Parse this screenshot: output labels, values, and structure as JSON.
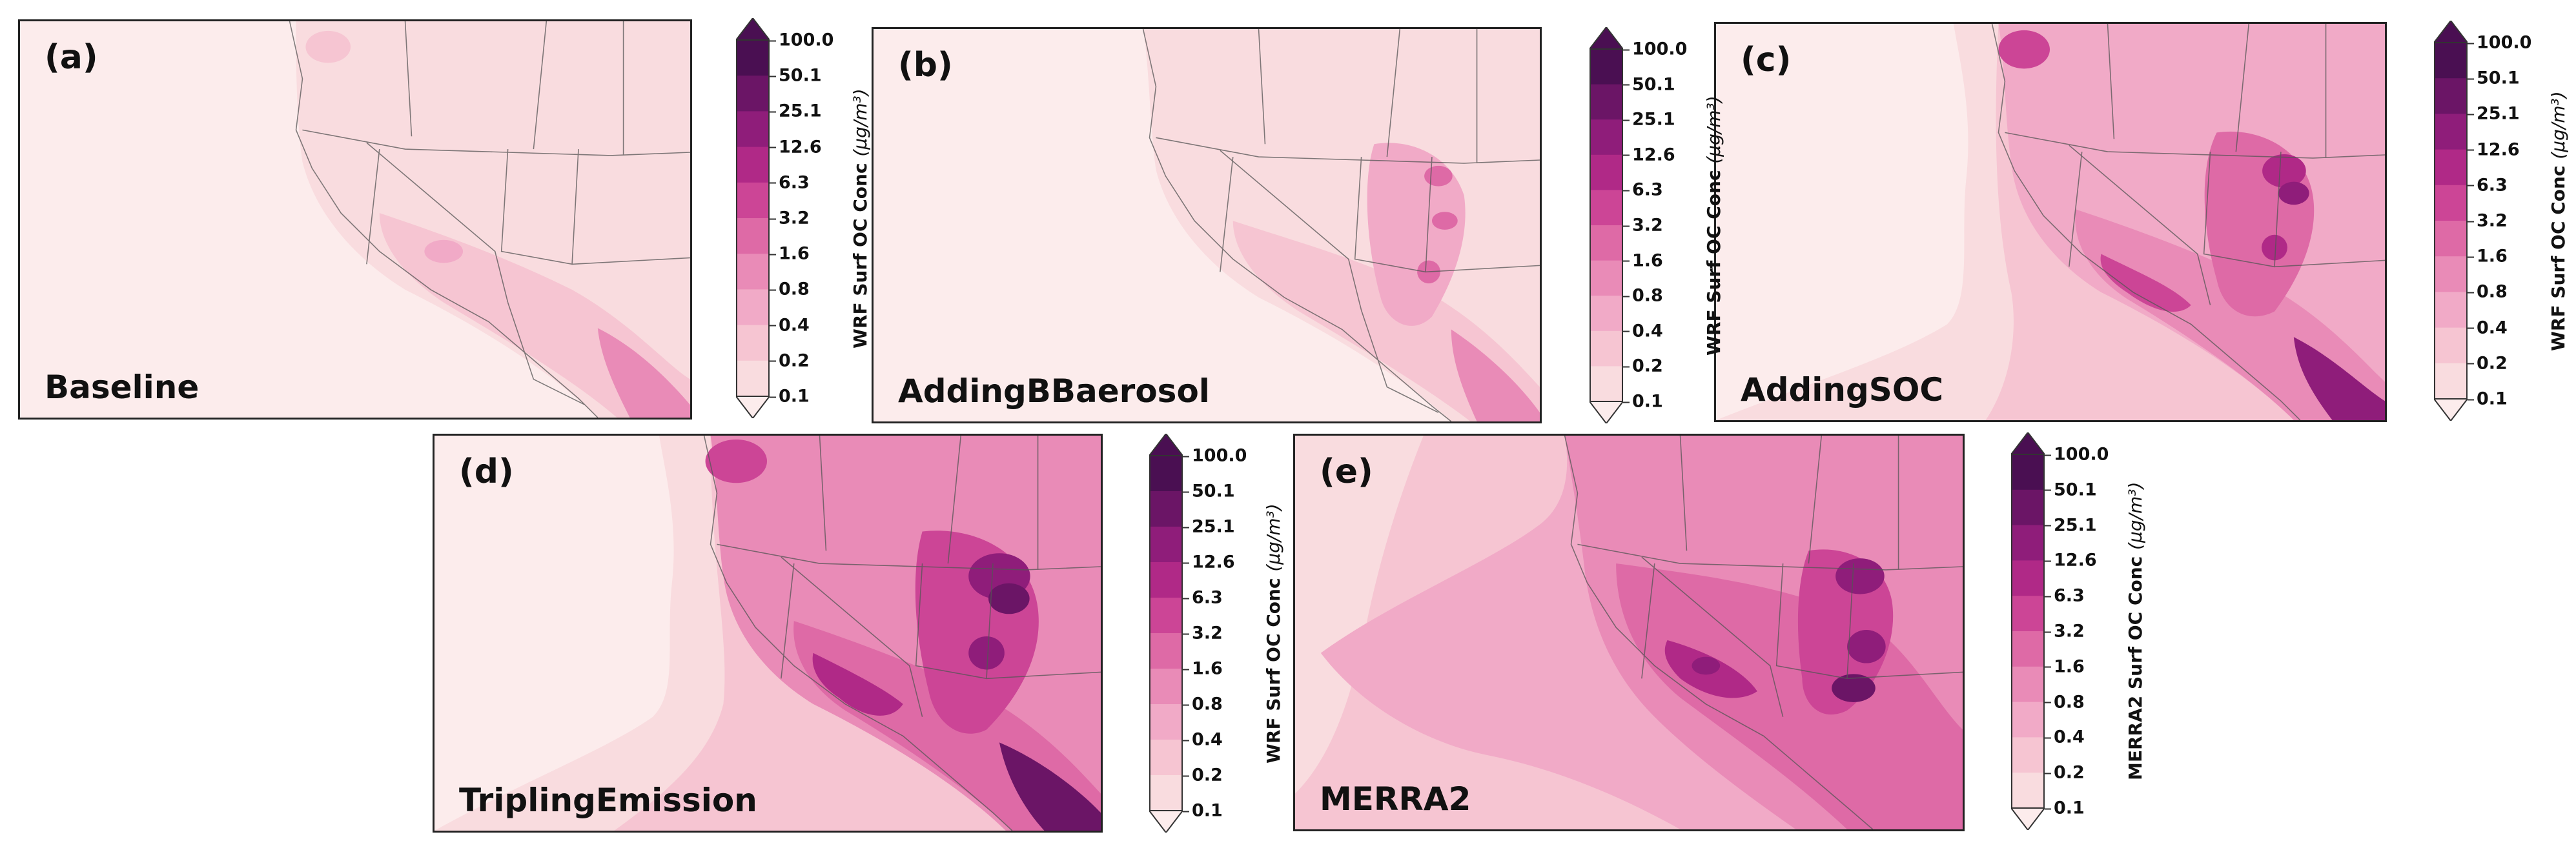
{
  "variable_label": "WRF Surf OC Conc",
  "merra_label": "MERRA2 Surf OC Conc",
  "units": "(μg/m³)",
  "ticks": [
    "100.0",
    "50.1",
    "25.1",
    "12.6",
    "6.3",
    "3.2",
    "1.6",
    "0.8",
    "0.4",
    "0.2",
    "0.1"
  ],
  "colors": [
    "#4a0f52",
    "#6b1566",
    "#8f1d7a",
    "#b02987",
    "#cc4596",
    "#de6aa6",
    "#e98bb7",
    "#f1aac7",
    "#f6c5d2",
    "#f9dcdf",
    "#fcecec"
  ],
  "panels": [
    {
      "letter": "(a)",
      "name": "Baseline",
      "cbar_label": "WRF Surf OC Conc"
    },
    {
      "letter": "(b)",
      "name": "AddingBBaerosol",
      "cbar_label": "WRF Surf OC Conc"
    },
    {
      "letter": "(c)",
      "name": "AddingSOC",
      "cbar_label": "WRF Surf OC Conc"
    },
    {
      "letter": "(d)",
      "name": "TriplingEmission",
      "cbar_label": "WRF Surf OC Conc"
    },
    {
      "letter": "(e)",
      "name": "MERRA2",
      "cbar_label": "MERRA2 Surf OC Conc"
    }
  ]
}
